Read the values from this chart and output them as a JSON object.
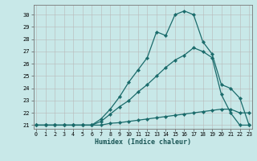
{
  "xlabel": "Humidex (Indice chaleur)",
  "bg_color": "#c8e8e8",
  "line_color": "#1a6b6b",
  "xlim": [
    -0.3,
    23.3
  ],
  "ylim": [
    20.7,
    30.8
  ],
  "yticks": [
    21,
    22,
    23,
    24,
    25,
    26,
    27,
    28,
    29,
    30
  ],
  "xticks": [
    0,
    1,
    2,
    3,
    4,
    5,
    6,
    7,
    8,
    9,
    10,
    11,
    12,
    13,
    14,
    15,
    16,
    17,
    18,
    19,
    20,
    21,
    22,
    23
  ],
  "line1_x": [
    0,
    1,
    2,
    3,
    4,
    5,
    6,
    7,
    8,
    9,
    10,
    11,
    12,
    13,
    14,
    15,
    16,
    17,
    18,
    19,
    20,
    21,
    22,
    23
  ],
  "line1_y": [
    21,
    21,
    21,
    21,
    21,
    21,
    21,
    21,
    21.15,
    21.2,
    21.3,
    21.4,
    21.5,
    21.6,
    21.7,
    21.8,
    21.9,
    22.0,
    22.1,
    22.2,
    22.3,
    22.3,
    22.0,
    22.0
  ],
  "line2_x": [
    0,
    1,
    2,
    3,
    4,
    5,
    6,
    7,
    8,
    9,
    10,
    11,
    12,
    13,
    14,
    15,
    16,
    17,
    18,
    19,
    20,
    21,
    22,
    23
  ],
  "line2_y": [
    21,
    21,
    21,
    21,
    21,
    21,
    21,
    21.3,
    21.9,
    22.5,
    23.0,
    23.7,
    24.3,
    25.0,
    25.7,
    26.3,
    26.7,
    27.3,
    27.0,
    26.5,
    23.5,
    22.0,
    21.0,
    21.0
  ],
  "line3_x": [
    0,
    1,
    2,
    3,
    4,
    5,
    6,
    7,
    8,
    9,
    10,
    11,
    12,
    13,
    14,
    15,
    16,
    17,
    18,
    19,
    20,
    21,
    22,
    23
  ],
  "line3_y": [
    21,
    21,
    21,
    21,
    21,
    21,
    21,
    21.5,
    22.3,
    23.3,
    24.5,
    25.5,
    26.5,
    28.6,
    28.3,
    30.0,
    30.3,
    30.0,
    27.8,
    26.8,
    24.3,
    24.0,
    23.2,
    21.0
  ]
}
